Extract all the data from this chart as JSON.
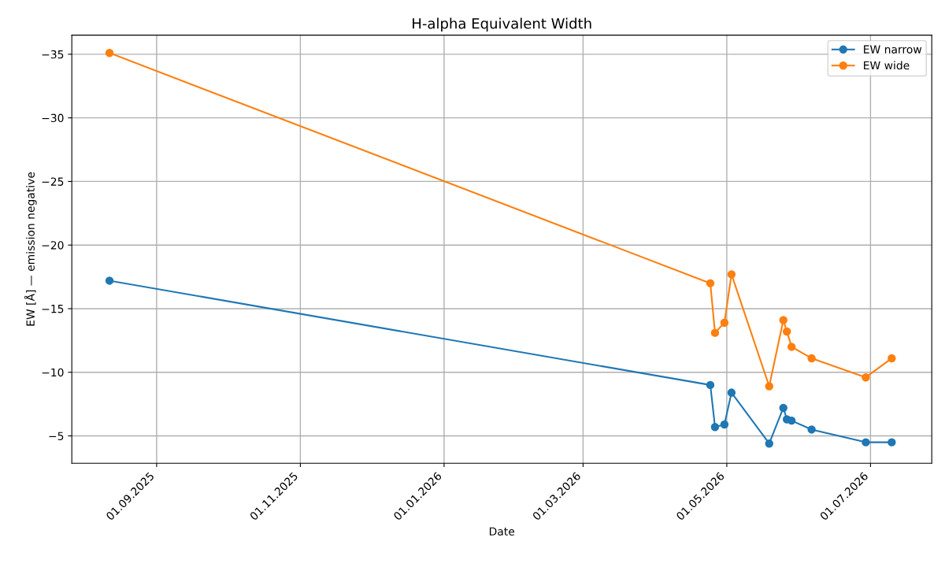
{
  "chart_data": {
    "type": "line",
    "title": "H-alpha Equivalent Width",
    "xlabel": "Date",
    "ylabel": "EW [Å] — emission negative",
    "x": [
      "2025-08-12",
      "2026-04-24",
      "2026-04-26",
      "2026-04-30",
      "2026-05-03",
      "2026-05-19",
      "2026-05-25",
      "2026-05-26T12:00",
      "2026-05-28T12:00",
      "2026-06-06",
      "2026-06-29",
      "2026-07-10"
    ],
    "series": [
      {
        "name": "EW narrow",
        "color": "#1f77b4",
        "values": [
          -17.2,
          -9.0,
          -5.7,
          -5.9,
          -8.4,
          -4.4,
          -7.2,
          -6.3,
          -6.2,
          -5.5,
          -4.5,
          -4.5
        ]
      },
      {
        "name": "EW wide",
        "color": "#ff7f0e",
        "values": [
          -35.1,
          -17.0,
          -13.1,
          -13.9,
          -17.7,
          -8.9,
          -14.1,
          -13.2,
          -12.0,
          -11.1,
          -9.6,
          -11.1
        ]
      }
    ],
    "xlim": [
      "2025-07-27",
      "2026-07-27"
    ],
    "xticks": [
      {
        "value": "2025-09-01",
        "label": "01.09.2025"
      },
      {
        "value": "2025-11-01",
        "label": "01.11.2025"
      },
      {
        "value": "2026-01-01",
        "label": "01.01.2026"
      },
      {
        "value": "2026-03-01",
        "label": "01.03.2026"
      },
      {
        "value": "2026-05-01",
        "label": "01.05.2026"
      },
      {
        "value": "2026-07-01",
        "label": "01.07.2026"
      }
    ],
    "ylim": [
      -2.85,
      -36.5
    ],
    "yticks": [
      {
        "value": -35,
        "label": "−35"
      },
      {
        "value": -30,
        "label": "−30"
      },
      {
        "value": -25,
        "label": "−25"
      },
      {
        "value": -20,
        "label": "−20"
      },
      {
        "value": -15,
        "label": "−15"
      },
      {
        "value": -10,
        "label": "−10"
      },
      {
        "value": -5,
        "label": "−5"
      }
    ],
    "grid": true,
    "legend": "top right",
    "marker": "circle",
    "line_style": "solid"
  }
}
